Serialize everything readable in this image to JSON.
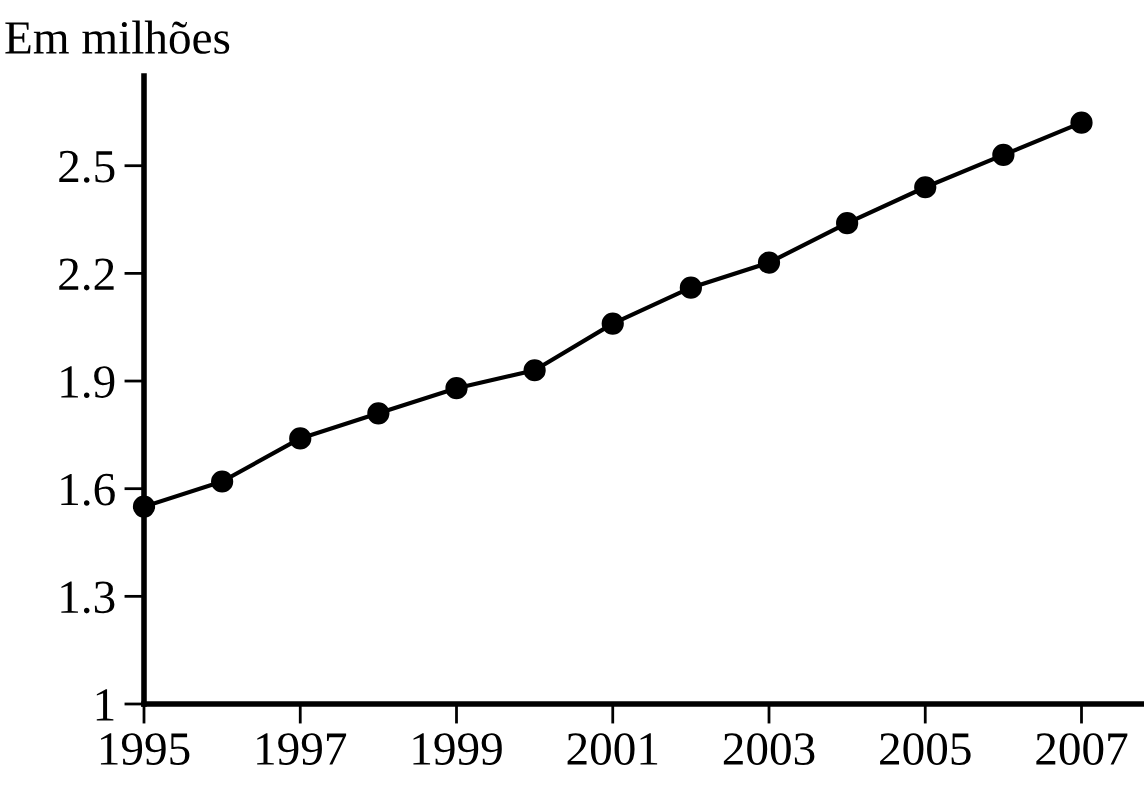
{
  "chart_data": {
    "type": "line",
    "ylabel": "Em milhões",
    "x": [
      1995,
      1996,
      1997,
      1998,
      1999,
      2000,
      2001,
      2002,
      2003,
      2004,
      2005,
      2006,
      2007
    ],
    "series": [
      {
        "color": "#000000",
        "values": [
          1.55,
          1.62,
          1.74,
          1.81,
          1.88,
          1.93,
          2.06,
          2.16,
          2.23,
          2.34,
          2.44,
          2.53,
          2.62
        ]
      }
    ],
    "xlim": [
      1995,
      2007.8
    ],
    "xticks": [
      1995,
      1997,
      1999,
      2001,
      2003,
      2005,
      2007
    ],
    "ylim": [
      1,
      2.75
    ],
    "yticks": [
      1,
      1.3,
      1.6,
      1.9,
      2.2,
      2.5
    ],
    "marker": "circle",
    "line_style": "solid",
    "grid": false,
    "legend": false
  }
}
